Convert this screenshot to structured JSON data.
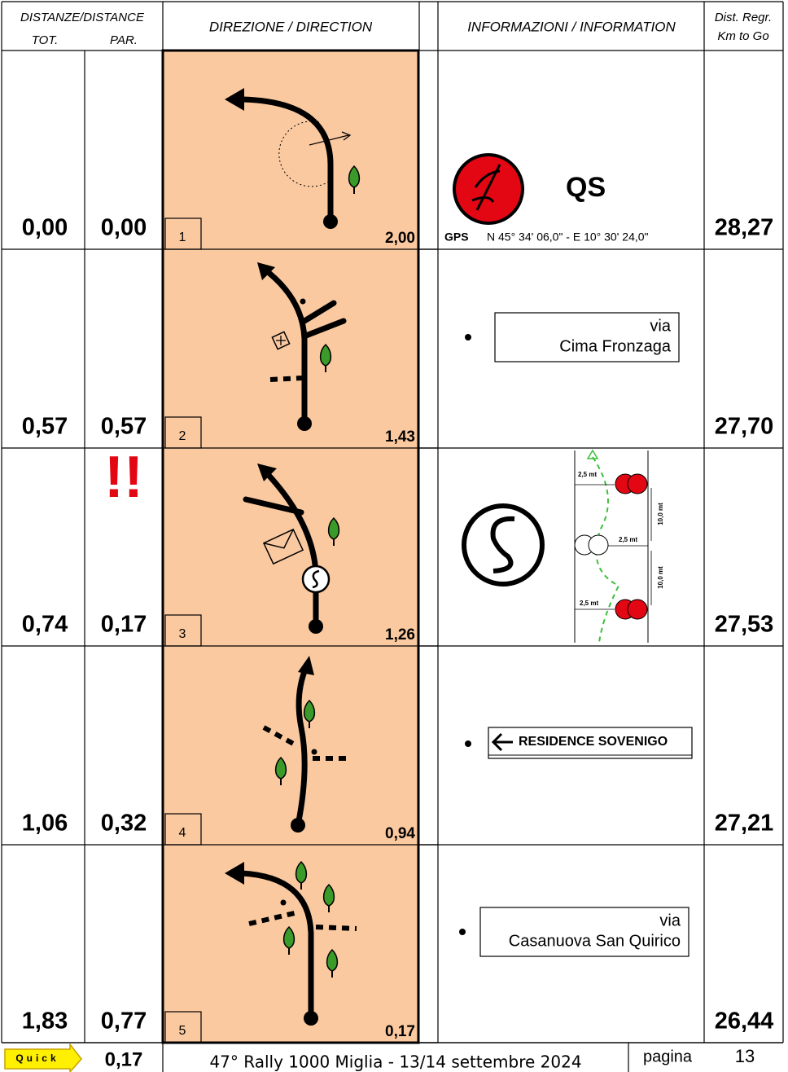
{
  "header": {
    "distance": "DISTANZE/DISTANCE",
    "tot": "TOT.",
    "par": "PAR.",
    "direction": "DIREZIONE / DIRECTION",
    "information": "INFORMAZIONI / INFORMATION",
    "regr_1": "Dist. Regr.",
    "regr_2": "Km to Go"
  },
  "rows": [
    {
      "tot": "0,00",
      "par": "0,00",
      "number": "1",
      "partial": "2,00",
      "km_to_go": "28,27",
      "info": {
        "code": "QS",
        "gps_label": "GPS",
        "gps": "N 45° 34' 06,0\" - E 10° 30' 24,0\""
      }
    },
    {
      "tot": "0,57",
      "par": "0,57",
      "number": "2",
      "partial": "1,43",
      "km_to_go": "27,70",
      "info": {
        "sign_1": "via",
        "sign_2": "Cima Fronzaga"
      }
    },
    {
      "tot": "0,74",
      "par": "0,17",
      "number": "3",
      "partial": "1,26",
      "km_to_go": "27,53",
      "warning": "!!",
      "info": {
        "label_1": "2,5 mt",
        "label_2": "10,0 mt",
        "label_3": "2,5 mt",
        "label_4": "10,0 mt",
        "label_5": "2,5 mt"
      }
    },
    {
      "tot": "1,06",
      "par": "0,32",
      "number": "4",
      "partial": "0,94",
      "km_to_go": "27,21",
      "info": {
        "sign_1": "RESIDENCE SOVENIGO"
      }
    },
    {
      "tot": "1,83",
      "par": "0,77",
      "number": "5",
      "partial": "0,17",
      "km_to_go": "26,44",
      "info": {
        "sign_1": "via",
        "sign_2": "Casanuova San Quirico"
      }
    }
  ],
  "footer": {
    "quick": "Quick",
    "quick_distance": "0,17",
    "title": "47° Rally 1000 Miglia - 13/14 settembre 2024",
    "page_label": "pagina",
    "page_number": "13"
  }
}
